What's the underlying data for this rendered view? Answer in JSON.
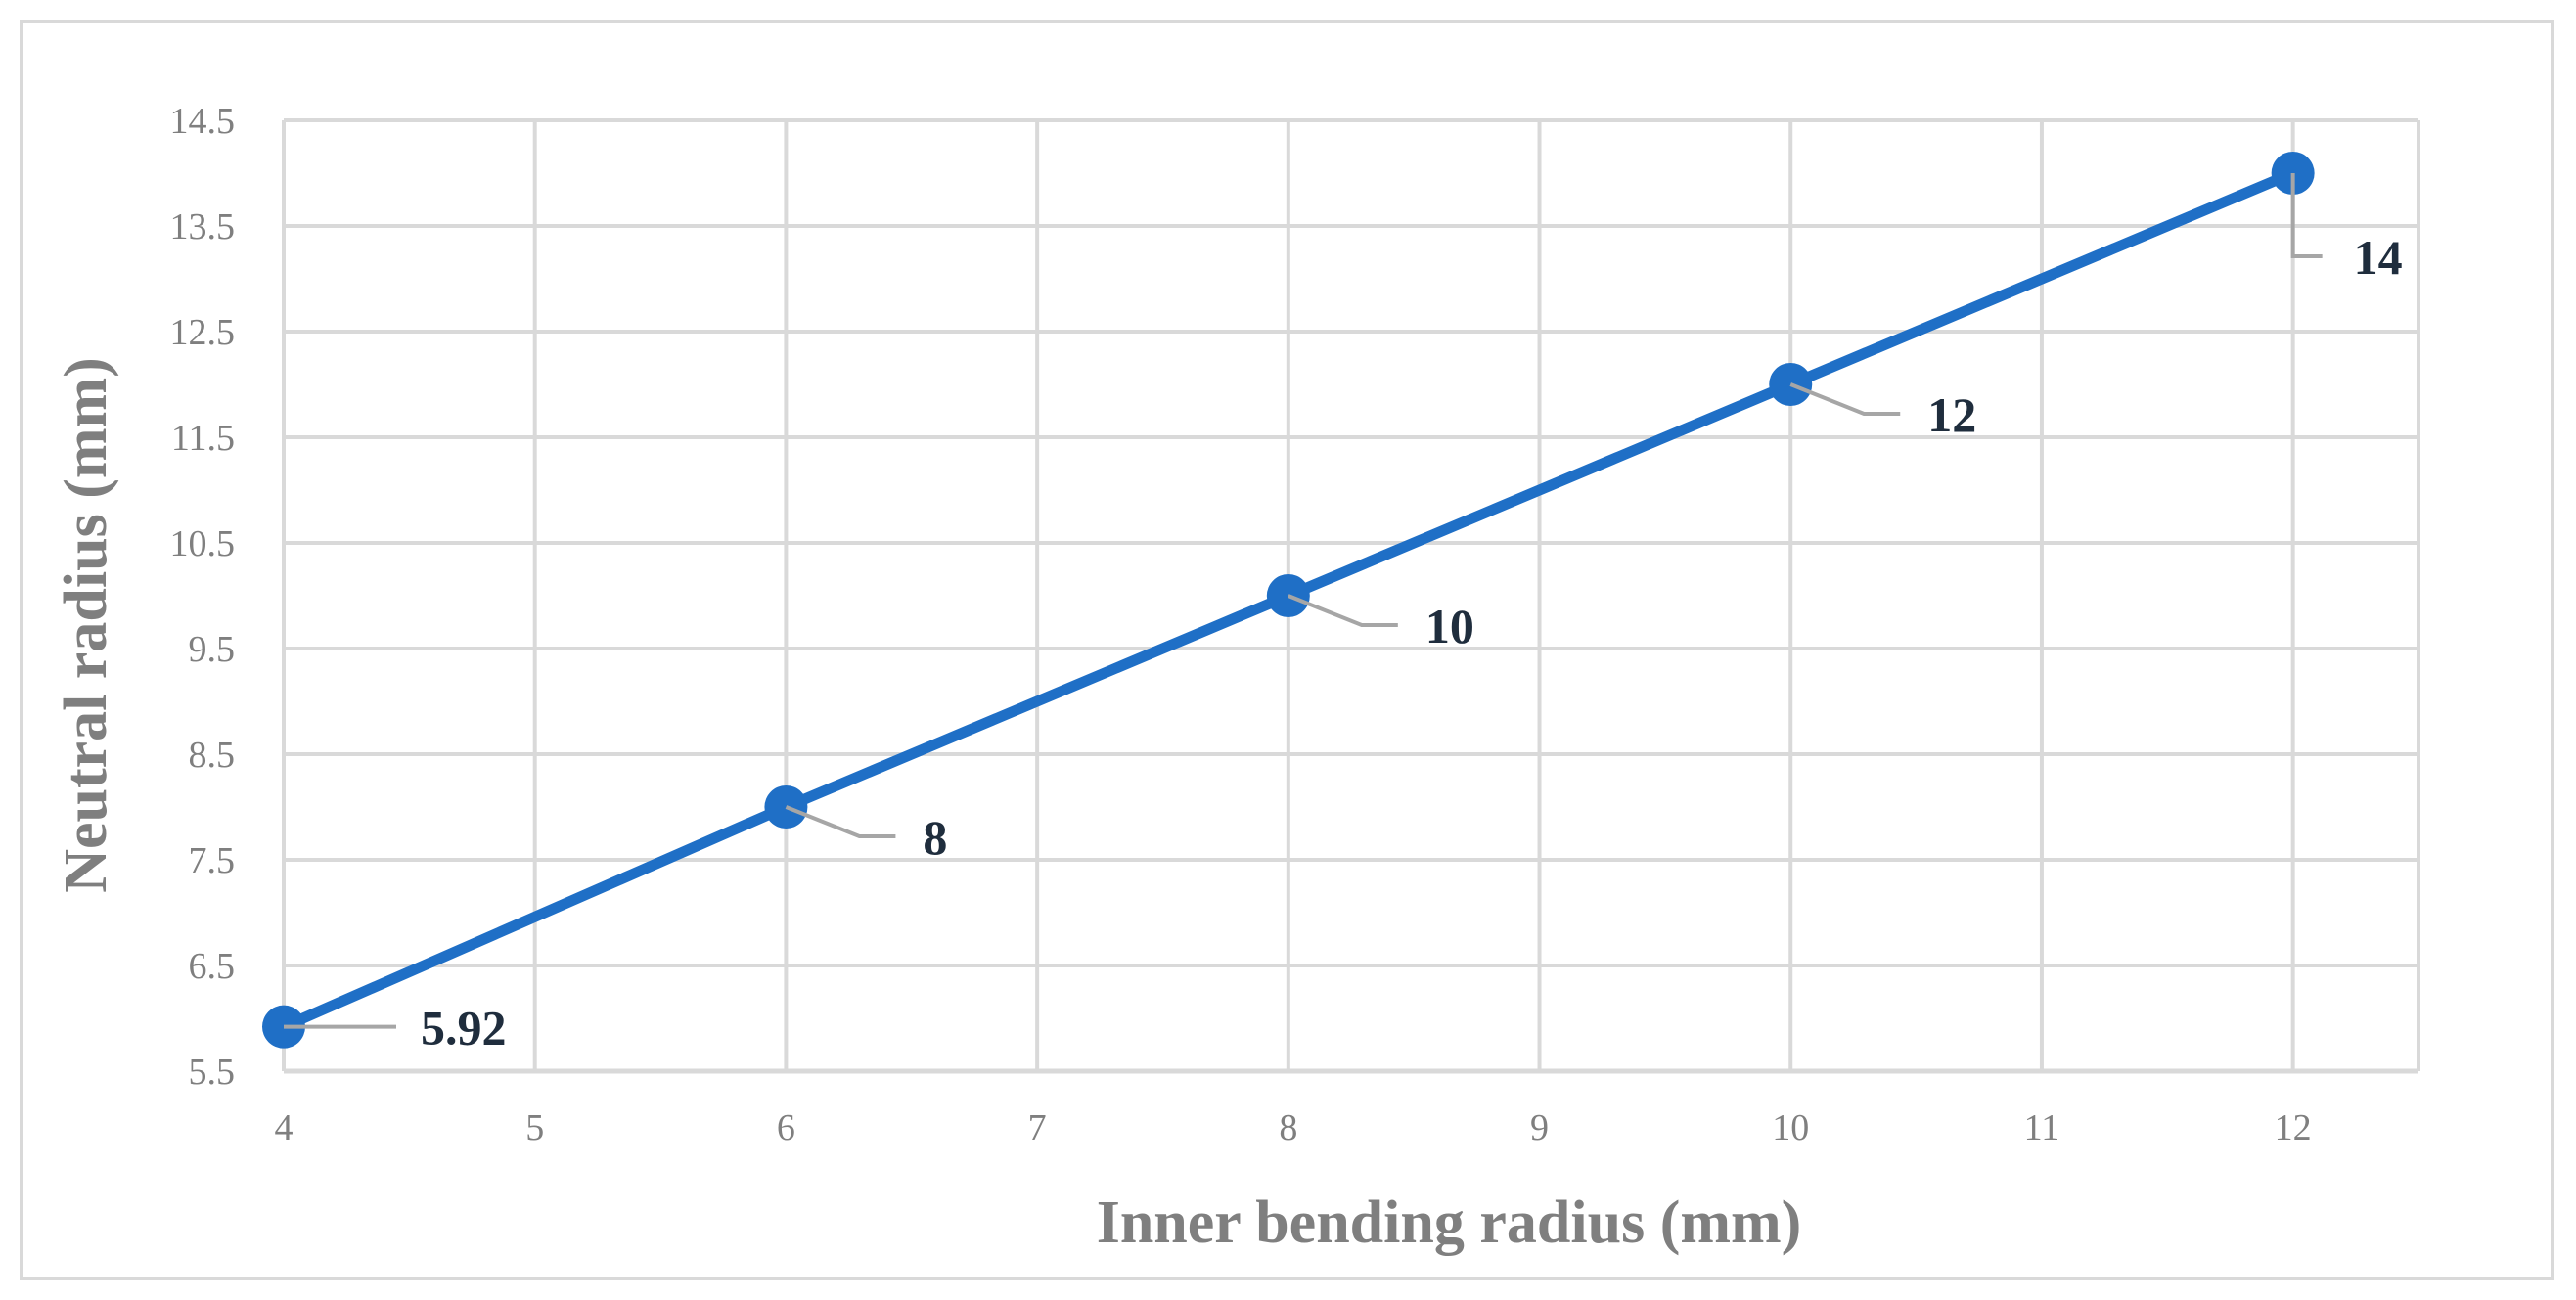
{
  "chart_data": {
    "type": "line",
    "title": "",
    "xlabel": "Inner bending radius (mm)",
    "ylabel": "Neutral radius (mm)",
    "xlim": [
      4,
      12.5
    ],
    "ylim": [
      5.5,
      14.5
    ],
    "x_ticks": [
      "4",
      "5",
      "6",
      "7",
      "8",
      "9",
      "10",
      "11",
      "12"
    ],
    "y_ticks": [
      "5.5",
      "6.5",
      "7.5",
      "8.5",
      "9.5",
      "10.5",
      "11.5",
      "12.5",
      "13.5",
      "14.5"
    ],
    "grid": true,
    "legend": "none",
    "colors": {
      "series": "#1f6fc6",
      "grid": "#d9d9d9",
      "leader": "#a6a6a6"
    },
    "series": [
      {
        "x": [
          4,
          6,
          8,
          10,
          12
        ],
        "y": [
          5.92,
          8,
          10,
          12,
          14
        ],
        "labels": [
          "5.92",
          "8",
          "10",
          "12",
          "14"
        ]
      }
    ]
  }
}
